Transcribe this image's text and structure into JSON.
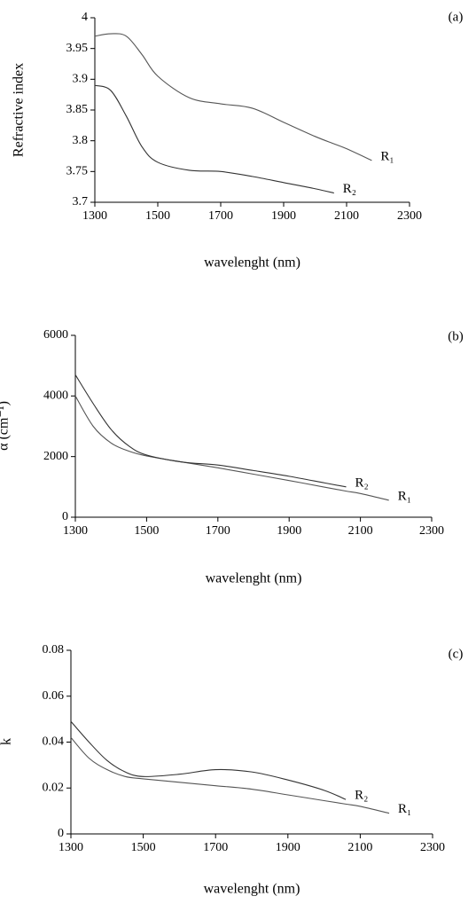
{
  "chart_data": [
    {
      "type": "line",
      "panel_label": "(a)",
      "xlabel": "wavelenght (nm)",
      "ylabel": "Refractive index",
      "x": [
        1300,
        1350,
        1400,
        1450,
        1500,
        1600,
        1700,
        1800,
        1900,
        2000,
        2060,
        2100,
        2180
      ],
      "series": [
        {
          "name": "R₁",
          "color": "#555555",
          "values": [
            3.97,
            3.974,
            3.97,
            3.94,
            3.905,
            3.87,
            3.86,
            3.853,
            3.83,
            3.807,
            3.795,
            3.787,
            3.768
          ]
        },
        {
          "name": "R₂",
          "color": "#333333",
          "values": [
            3.89,
            3.882,
            3.84,
            3.79,
            3.765,
            3.752,
            3.75,
            3.742,
            3.732,
            3.722,
            3.715,
            null,
            null
          ]
        }
      ],
      "xlim": [
        1300,
        2300
      ],
      "xticks": [
        1300,
        1500,
        1700,
        1900,
        2100,
        2300
      ],
      "ylim": [
        3.7,
        4
      ],
      "yticks": [
        3.7,
        3.75,
        3.8,
        3.85,
        3.9,
        3.95,
        4
      ]
    },
    {
      "type": "line",
      "panel_label": "(b)",
      "xlabel": "wavelenght (nm)",
      "ylabel": "α (cm⁻¹)",
      "x": [
        1300,
        1350,
        1400,
        1450,
        1500,
        1600,
        1700,
        1800,
        1900,
        2000,
        2060,
        2100,
        2180
      ],
      "series": [
        {
          "name": "R₁",
          "color": "#555555",
          "values": [
            4000,
            3000,
            2450,
            2180,
            2020,
            1820,
            1630,
            1420,
            1210,
            990,
            860,
            780,
            560
          ]
        },
        {
          "name": "R₂",
          "color": "#333333",
          "values": [
            4700,
            3750,
            2900,
            2350,
            2050,
            1820,
            1720,
            1540,
            1350,
            1130,
            1000,
            null,
            null
          ]
        }
      ],
      "xlim": [
        1300,
        2300
      ],
      "xticks": [
        1300,
        1500,
        1700,
        1900,
        2100,
        2300
      ],
      "ylim": [
        0,
        6000
      ],
      "yticks": [
        0,
        2000,
        4000,
        6000
      ]
    },
    {
      "type": "line",
      "panel_label": "(c)",
      "xlabel": "wavelenght (nm)",
      "ylabel": "k",
      "x": [
        1300,
        1350,
        1400,
        1450,
        1500,
        1600,
        1700,
        1800,
        1900,
        2000,
        2060,
        2100,
        2180
      ],
      "series": [
        {
          "name": "R₁",
          "color": "#555555",
          "values": [
            0.042,
            0.033,
            0.028,
            0.025,
            0.024,
            0.0225,
            0.021,
            0.0195,
            0.017,
            0.0145,
            0.013,
            0.012,
            0.009
          ]
        },
        {
          "name": "R₂",
          "color": "#333333",
          "values": [
            0.049,
            0.04,
            0.032,
            0.027,
            0.025,
            0.026,
            0.028,
            0.027,
            0.0235,
            0.019,
            0.015,
            null,
            null
          ]
        }
      ],
      "xlim": [
        1300,
        2300
      ],
      "xticks": [
        1300,
        1500,
        1700,
        1900,
        2100,
        2300
      ],
      "ylim": [
        0,
        0.08
      ],
      "yticks": [
        0,
        0.02,
        0.04,
        0.06,
        0.08
      ]
    }
  ]
}
